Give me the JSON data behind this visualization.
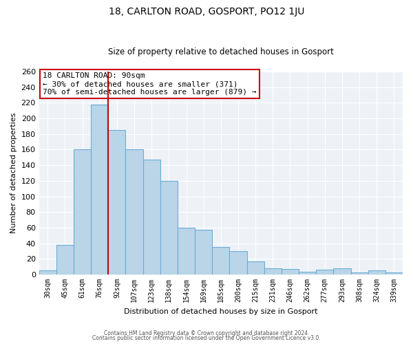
{
  "title": "18, CARLTON ROAD, GOSPORT, PO12 1JU",
  "subtitle": "Size of property relative to detached houses in Gosport",
  "xlabel": "Distribution of detached houses by size in Gosport",
  "ylabel": "Number of detached properties",
  "categories": [
    "30sqm",
    "45sqm",
    "61sqm",
    "76sqm",
    "92sqm",
    "107sqm",
    "123sqm",
    "138sqm",
    "154sqm",
    "169sqm",
    "185sqm",
    "200sqm",
    "215sqm",
    "231sqm",
    "246sqm",
    "262sqm",
    "277sqm",
    "293sqm",
    "308sqm",
    "324sqm",
    "339sqm"
  ],
  "values": [
    5,
    38,
    160,
    218,
    185,
    160,
    147,
    120,
    60,
    57,
    35,
    30,
    17,
    8,
    7,
    4,
    6,
    8,
    3,
    5,
    3
  ],
  "bar_color": "#bad4e8",
  "bar_edge_color": "#6aaed6",
  "highlight_color": "#cc0000",
  "red_line_x": 3.5,
  "ylim": [
    0,
    260
  ],
  "yticks": [
    0,
    20,
    40,
    60,
    80,
    100,
    120,
    140,
    160,
    180,
    200,
    220,
    240,
    260
  ],
  "annotation_title": "18 CARLTON ROAD: 90sqm",
  "annotation_line1": "← 30% of detached houses are smaller (371)",
  "annotation_line2": "70% of semi-detached houses are larger (879) →",
  "background_color": "#eef2f7",
  "grid_color": "#ffffff",
  "footer_line1": "Contains HM Land Registry data © Crown copyright and database right 2024.",
  "footer_line2": "Contains public sector information licensed under the Open Government Licence v3.0."
}
